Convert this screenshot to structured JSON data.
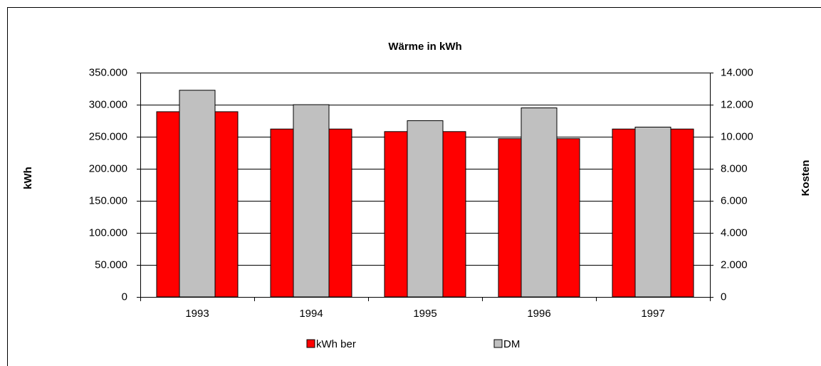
{
  "chart_data": {
    "type": "bar",
    "title": "Wärme in kWh",
    "ylabel": "kWh",
    "y2label": "Kosten",
    "categories": [
      "1993",
      "1994",
      "1995",
      "1996",
      "1997"
    ],
    "series": [
      {
        "name": "kWh ber",
        "color": "#ff0000",
        "values": [
          289000,
          262000,
          258000,
          247000,
          262000
        ]
      },
      {
        "name": "DM",
        "color": "#c0c0c0",
        "axis": "y2",
        "values": [
          12900,
          12000,
          11000,
          11800,
          10600
        ]
      }
    ],
    "ylim": [
      0,
      350000
    ],
    "yticks": [
      0,
      {
        "value": 50000,
        "label": "50.000"
      },
      {
        "value": 100000,
        "label": "100.000"
      },
      {
        "value": 150000,
        "label": "150.000"
      },
      {
        "value": 200000,
        "label": "200.000"
      },
      {
        "value": 250000,
        "label": "250.000"
      },
      {
        "value": 300000,
        "label": "300.000"
      },
      {
        "value": 350000,
        "label": "350.000"
      }
    ],
    "y2lim": [
      0,
      14000
    ],
    "y2ticks": [
      0,
      {
        "value": 2000,
        "label": "2.000"
      },
      {
        "value": 4000,
        "label": "4.000"
      },
      {
        "value": 6000,
        "label": "6.000"
      },
      {
        "value": 8000,
        "label": "8.000"
      },
      {
        "value": 10000,
        "label": "10.000"
      },
      {
        "value": 12000,
        "label": "12.000"
      },
      {
        "value": 14000,
        "label": "14.000"
      }
    ],
    "grid": true,
    "legend": "bottom"
  }
}
